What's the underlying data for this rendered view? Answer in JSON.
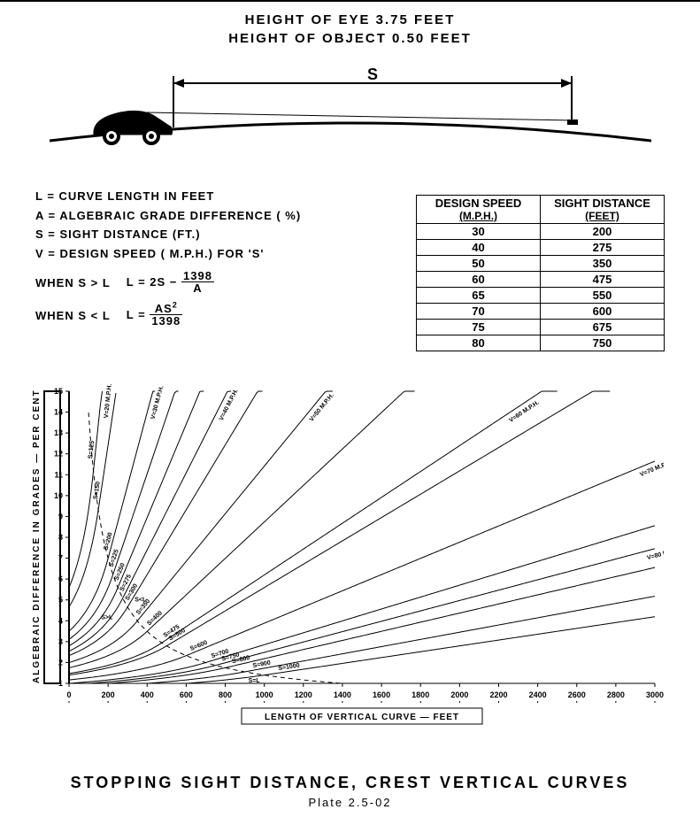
{
  "header": {
    "line1": "HEIGHT OF EYE  3.75   FEET",
    "line2": "HEIGHT OF OBJECT 0.50 FEET"
  },
  "diagram": {
    "s_label": "S",
    "line_color": "#000000",
    "road_stroke": 3,
    "sight_stroke": 1
  },
  "definitions": {
    "L": "L = CURVE LENGTH IN FEET",
    "A": "A = ALGEBRAIC GRADE DIFFERENCE ( %)",
    "S": "S = SIGHT DISTANCE (FT.)",
    "V": "V = DESIGN SPEED  ( M.P.H.) FOR 'S'"
  },
  "formulas": {
    "case1_cond": "WHEN S > L",
    "case1_lhs": "L = 2S −",
    "case1_num": "1398",
    "case1_den": "A",
    "case2_cond": "WHEN S < L",
    "case2_lhs": "L =",
    "case2_num_pre": "AS",
    "case2_num_exp": "2",
    "case2_den": "1398"
  },
  "table": {
    "header1_top": "DESIGN SPEED",
    "header1_sub": "(M.P.H.)",
    "header2_top": "SIGHT DISTANCE",
    "header2_sub": "(FEET)",
    "rows": [
      [
        "30",
        "200"
      ],
      [
        "40",
        "275"
      ],
      [
        "50",
        "350"
      ],
      [
        "60",
        "475"
      ],
      [
        "65",
        "550"
      ],
      [
        "70",
        "600"
      ],
      [
        "75",
        "675"
      ],
      [
        "80",
        "750"
      ]
    ]
  },
  "chart": {
    "type": "line-family",
    "background": "#ffffff",
    "axis_color": "#000000",
    "axis_width": 2,
    "curve_width": 1,
    "tick_font": 9,
    "label_font": 10,
    "y": {
      "label": "ALGEBRAIC  DIFFERENCE  IN  GRADES — PER CENT",
      "min": 1,
      "max": 15,
      "ticks": [
        1,
        2,
        3,
        4,
        5,
        6,
        7,
        8,
        9,
        10,
        11,
        12,
        13,
        14,
        15
      ]
    },
    "x": {
      "label": "LENGTH OF VERTICAL CURVE — FEET",
      "min": 0,
      "max": 3000,
      "ticks": [
        0,
        200,
        400,
        600,
        800,
        1000,
        1200,
        1400,
        1600,
        1800,
        2000,
        2200,
        2400,
        2600,
        2800,
        3000
      ]
    },
    "s_curves": [
      {
        "S": 125,
        "label": "S=125"
      },
      {
        "S": 150,
        "label": "S=150"
      },
      {
        "S": 200,
        "label": "S=200"
      },
      {
        "S": 225,
        "label": "S=225"
      },
      {
        "S": 250,
        "label": "S=250"
      },
      {
        "S": 275,
        "label": "S=275"
      },
      {
        "S": 300,
        "label": "S=300"
      },
      {
        "S": 350,
        "label": "S=350"
      },
      {
        "S": 400,
        "label": "S=400"
      },
      {
        "S": 475,
        "label": "S=475"
      },
      {
        "S": 500,
        "label": "S=500"
      },
      {
        "S": 600,
        "label": "S=600"
      },
      {
        "S": 700,
        "label": "S=700"
      },
      {
        "S": 750,
        "label": "S=750"
      },
      {
        "S": 800,
        "label": "S=800"
      },
      {
        "S": 900,
        "label": "S=900"
      },
      {
        "S": 1000,
        "label": "S=1000"
      }
    ],
    "v_labels": [
      {
        "text": "V=20 M.P.H.",
        "S": 125
      },
      {
        "text": "V=30 M.P.H.",
        "S": 200
      },
      {
        "text": "V=40 M.P.H.",
        "S": 275
      },
      {
        "text": "V=50 M.P.H.",
        "S": 350
      },
      {
        "text": "V=60 M.P.H.",
        "S": 475
      },
      {
        "text": "V=70 M.P.H.",
        "S": 600
      },
      {
        "text": "V=80 M.P.H.",
        "S": 750
      }
    ],
    "boundary_labels": {
      "s_gt_l": "S>L",
      "s_lt_l": "S<L",
      "s_eq_l": "S=L"
    },
    "constant": 1398
  },
  "title": {
    "main": "STOPPING  SIGHT  DISTANCE,  CREST  VERTICAL  CURVES",
    "plate": "Plate   2.5-02"
  }
}
